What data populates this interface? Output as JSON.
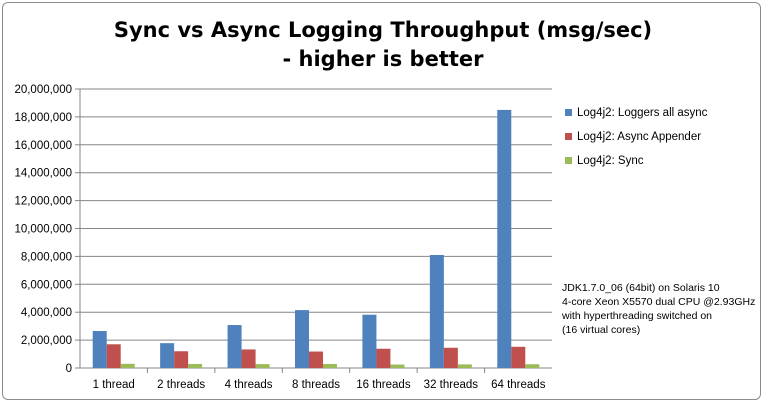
{
  "chart_data": {
    "type": "bar",
    "title_lines": [
      "Sync vs Async Logging Throughput (msg/sec)",
      "- higher is better"
    ],
    "xlabel": "",
    "ylabel": "",
    "categories": [
      "1 thread",
      "2 threads",
      "4 threads",
      "8 threads",
      "16 threads",
      "32 threads",
      "64 threads"
    ],
    "ylim": [
      0,
      20000000
    ],
    "yticks": [
      0,
      2000000,
      4000000,
      6000000,
      8000000,
      10000000,
      12000000,
      14000000,
      16000000,
      18000000,
      20000000
    ],
    "grid": "horizontal",
    "legend_position": "right",
    "series": [
      {
        "name": "Log4j2: Loggers all async",
        "color": "#4f81bd",
        "values": [
          2650000,
          1780000,
          3080000,
          4150000,
          3820000,
          8100000,
          18500000
        ]
      },
      {
        "name": "Log4j2: Async Appender",
        "color": "#c0504d",
        "values": [
          1700000,
          1200000,
          1330000,
          1180000,
          1380000,
          1450000,
          1520000
        ]
      },
      {
        "name": "Log4j2: Sync",
        "color": "#9bbb59",
        "values": [
          300000,
          290000,
          280000,
          290000,
          250000,
          260000,
          270000
        ]
      }
    ],
    "note_lines": [
      "JDK1.7.0_06 (64bit) on Solaris 10",
      "4-core Xeon X5570 dual CPU @2.93GHz",
      "with hyperthreading switched on",
      "(16 virtual cores)"
    ]
  }
}
